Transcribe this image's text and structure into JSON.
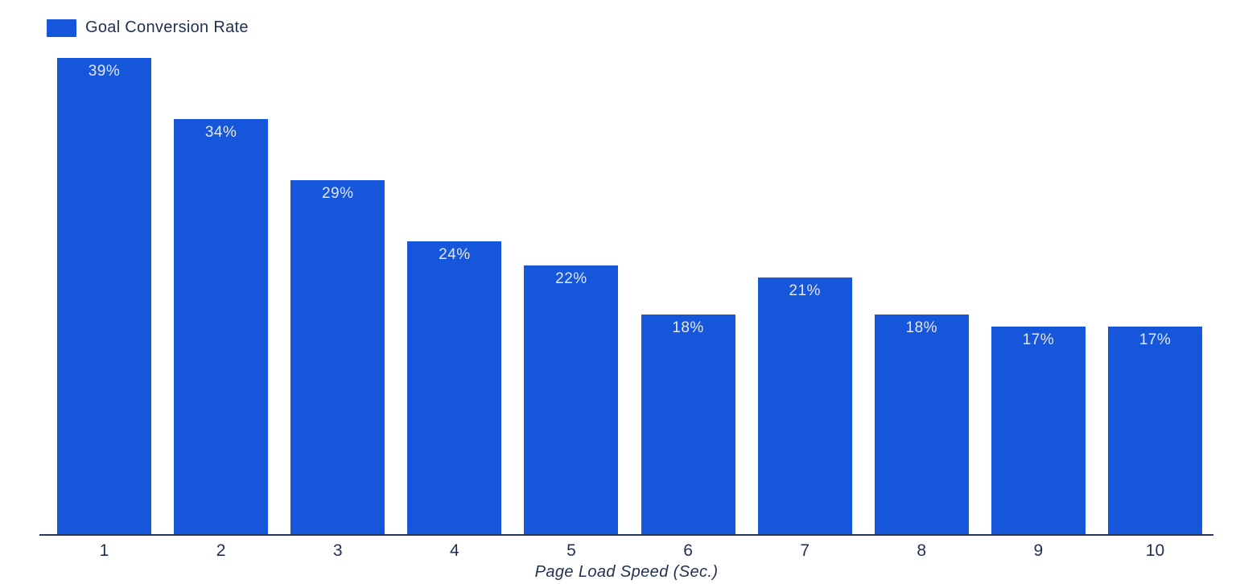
{
  "legend": {
    "label": "Goal Conversion Rate"
  },
  "colors": {
    "bar": "#1556db",
    "axis_text": "#1f3050",
    "bar_label_text": "#e4e8f0",
    "axis_line": "#26365c",
    "background": "#ffffff"
  },
  "chart_data": {
    "type": "bar",
    "title": "",
    "categories": [
      "1",
      "2",
      "3",
      "4",
      "5",
      "6",
      "7",
      "8",
      "9",
      "10"
    ],
    "series": [
      {
        "name": "Goal Conversion Rate",
        "values": [
          39,
          34,
          29,
          24,
          22,
          18,
          21,
          18,
          17,
          17
        ]
      }
    ],
    "data_labels": [
      "39%",
      "34%",
      "29%",
      "24%",
      "22%",
      "18%",
      "21%",
      "18%",
      "17%",
      "17%"
    ],
    "xlabel": "Page Load Speed (Sec.)",
    "ylabel": "",
    "ylim": [
      0,
      40
    ],
    "grid": false,
    "legend_position": "top-left"
  }
}
